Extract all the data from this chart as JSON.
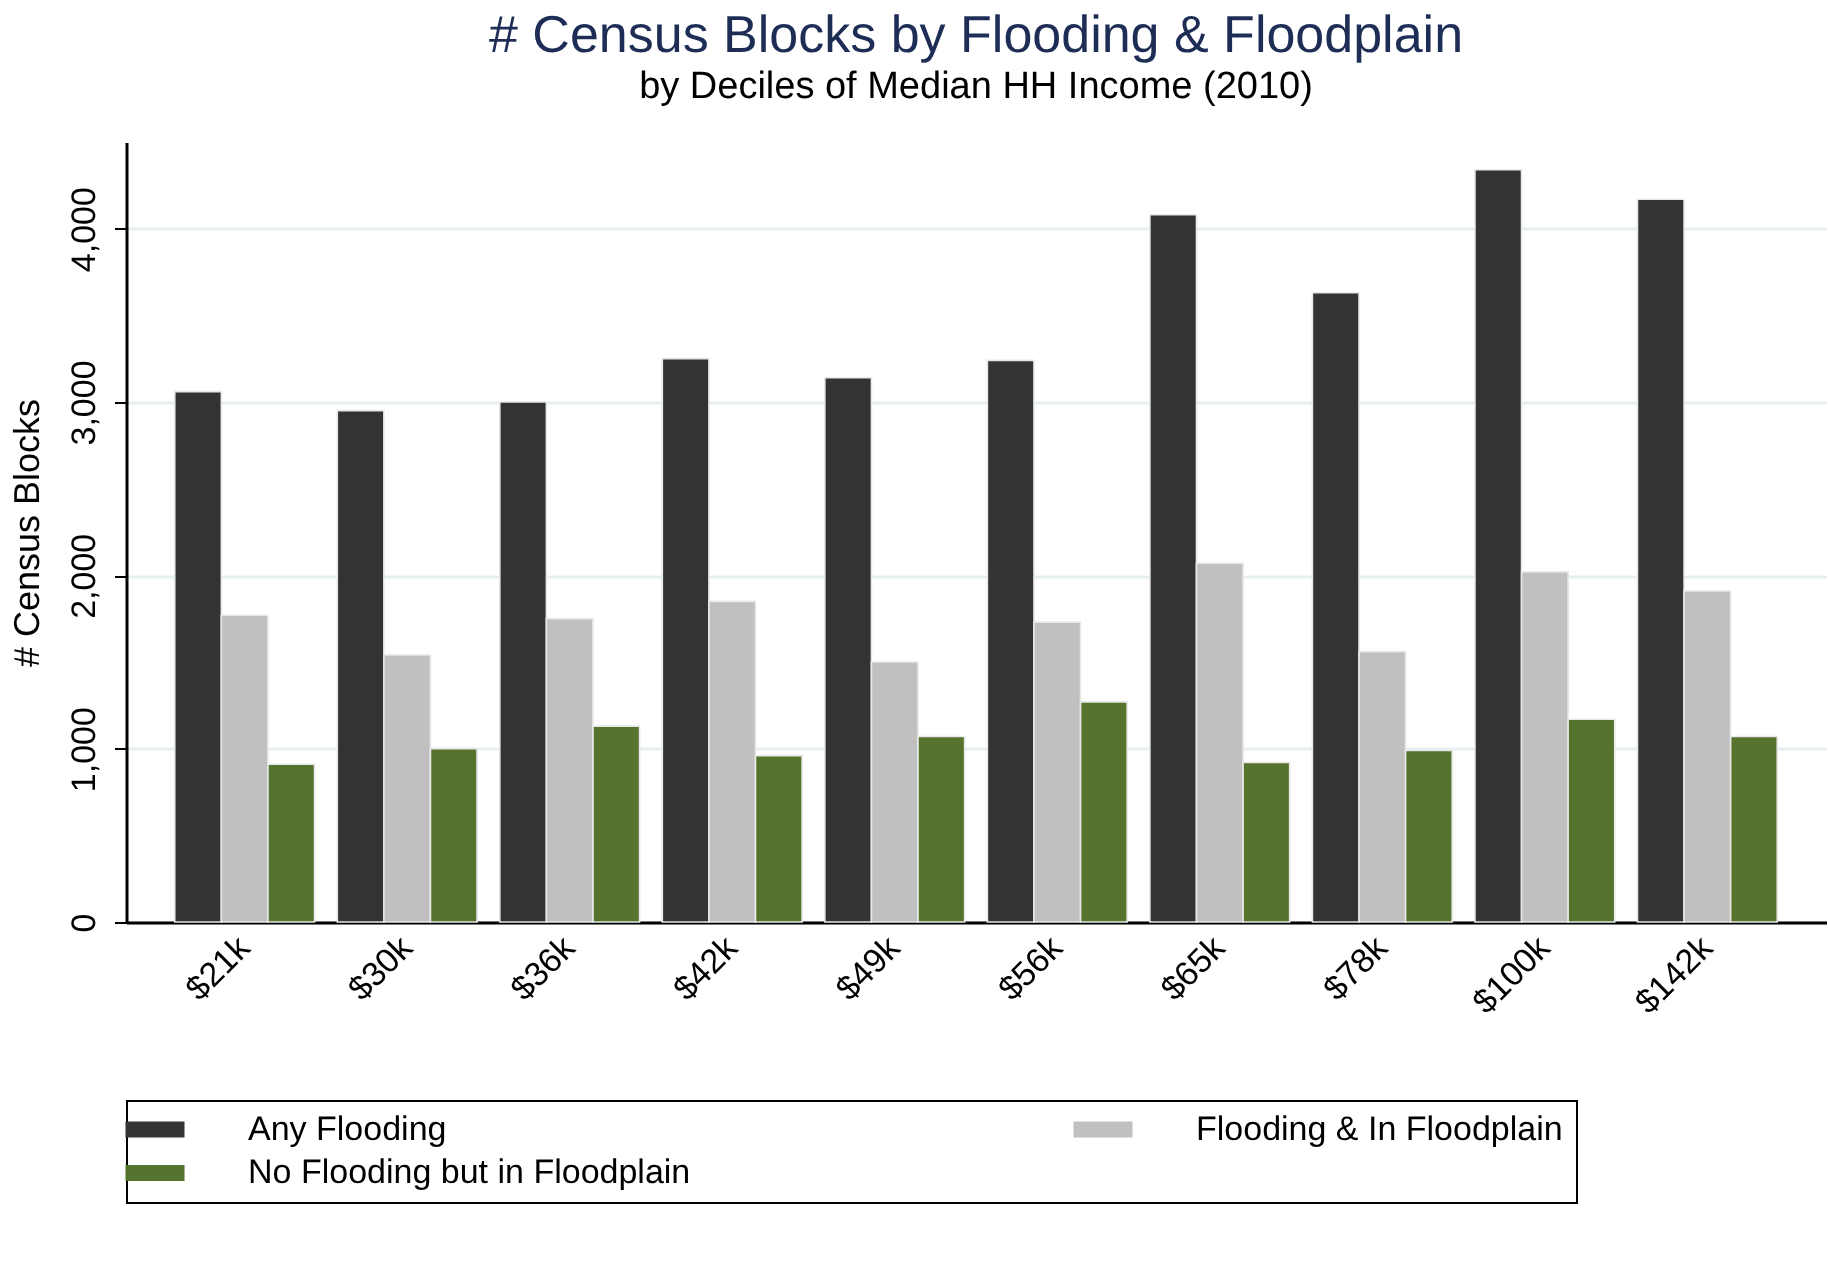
{
  "chart_data": {
    "type": "bar",
    "title": "# Census Blocks by Flooding & Floodplain",
    "subtitle": "by Deciles of Median HH Income (2010)",
    "ylabel": "# Census Blocks",
    "categories": [
      "$21k",
      "$30k",
      "$36k",
      "$42k",
      "$49k",
      "$56k",
      "$65k",
      "$78k",
      "$100k",
      "$142k"
    ],
    "series": [
      {
        "name": "Any Flooding",
        "color": "#333333",
        "values": [
          3060,
          2950,
          3000,
          3250,
          3140,
          3240,
          4080,
          3630,
          4340,
          4170
        ]
      },
      {
        "name": "Flooding & In Floodplain",
        "color": "#c0c0c0",
        "values": [
          1770,
          1540,
          1750,
          1850,
          1500,
          1730,
          2070,
          1560,
          2020,
          1910
        ]
      },
      {
        "name": "No Flooding but in Floodplain",
        "color": "#56732e",
        "values": [
          910,
          1000,
          1130,
          960,
          1070,
          1270,
          920,
          990,
          1170,
          1070
        ]
      }
    ],
    "ylim": [
      0,
      4500
    ],
    "yticks": [
      {
        "value": 0,
        "label": "0"
      },
      {
        "value": 1000,
        "label": "1,000"
      },
      {
        "value": 2000,
        "label": "2,000"
      },
      {
        "value": 3000,
        "label": "3,000"
      },
      {
        "value": 4000,
        "label": "4,000"
      }
    ],
    "grid": "y",
    "legend": "bottom"
  }
}
